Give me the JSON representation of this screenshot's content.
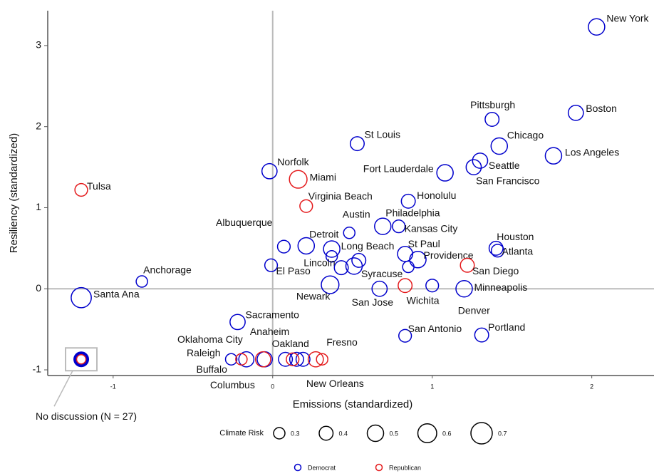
{
  "chart_data": {
    "type": "scatter",
    "x_label": "Emissions (standardized)",
    "y_label": "Resiliency (standardized)",
    "xlim": [
      -1.41,
      2.39
    ],
    "ylim": [
      -1.07,
      3.43
    ],
    "xticks": [
      -1,
      0,
      1,
      2
    ],
    "yticks": [
      -1,
      0,
      1,
      2,
      3
    ],
    "vline": 0,
    "hline": 0,
    "size_legend": {
      "title": "Climate Risk",
      "values": [
        0.3,
        0.4,
        0.5,
        0.6,
        0.7
      ]
    },
    "series": [
      {
        "name": "Democrat",
        "color": "#0000cc",
        "labels": [
          "New York",
          "Boston",
          "Pittsburgh",
          "Chicago",
          "Los Angeles",
          "Seattle",
          "San Francisco",
          "Fort Lauderdale",
          "St Louis",
          "Norfolk",
          "Honolulu",
          "Austin",
          "Philadelphia",
          "Kansas City",
          "Albuquerque",
          "Detroit",
          "Long Beach",
          "Houston",
          "Atlanta",
          "St Paul",
          "Providence",
          null,
          "Lincoln",
          null,
          "Syracuse",
          null,
          "El Paso",
          "Anchorage",
          "Santa Ana",
          "Newark",
          "San Jose",
          "Denver",
          "Minneapolis",
          "Sacramento",
          "San Antonio",
          "Portland",
          "Raleigh",
          "Oklahoma City",
          "Anaheim",
          "Oakland",
          null,
          "New Orleans"
        ],
        "x": [
          2.03,
          1.9,
          1.375,
          1.42,
          1.76,
          1.3,
          1.26,
          1.08,
          0.53,
          -0.02,
          0.85,
          0.48,
          0.69,
          0.79,
          0.07,
          0.21,
          0.37,
          1.4,
          1.41,
          0.83,
          0.91,
          0.85,
          0.37,
          0.43,
          0.51,
          0.54,
          -0.01,
          -0.82,
          -1.2,
          0.36,
          0.67,
          1.0,
          1.2,
          -0.22,
          0.83,
          1.31,
          -0.26,
          -0.165,
          -0.05,
          0.08,
          0.15,
          0.19
        ],
        "values": [
          3.23,
          2.17,
          2.09,
          1.76,
          1.64,
          1.58,
          1.5,
          1.43,
          1.79,
          1.45,
          1.08,
          0.69,
          0.77,
          0.77,
          0.52,
          0.53,
          0.49,
          0.5,
          0.47,
          0.43,
          0.36,
          0.27,
          0.4,
          0.26,
          0.28,
          0.35,
          0.29,
          0.09,
          -0.11,
          0.05,
          0,
          0.04,
          0,
          -0.41,
          -0.58,
          -0.57,
          -0.87,
          -0.87,
          -0.87,
          -0.87,
          -0.87,
          -0.87
        ],
        "sizes": [
          0.5,
          0.45,
          0.4,
          0.5,
          0.5,
          0.45,
          0.45,
          0.5,
          0.4,
          0.45,
          0.4,
          0.3,
          0.5,
          0.35,
          0.35,
          0.5,
          0.5,
          0.4,
          0.35,
          0.45,
          0.5,
          0.3,
          0.3,
          0.4,
          0.5,
          0.4,
          0.35,
          0.3,
          0.65,
          0.55,
          0.45,
          0.35,
          0.5,
          0.45,
          0.35,
          0.4,
          0.3,
          0.45,
          0.45,
          0.4,
          0.4,
          0.4
        ]
      },
      {
        "name": "Republican",
        "color": "#e41a1c",
        "labels": [
          "Tulsa",
          "Miami",
          "Virginia Beach",
          "San Diego",
          "Wichita",
          "Buffalo",
          "Columbus",
          null,
          "Fresno",
          null
        ],
        "x": [
          -1.2,
          0.16,
          0.21,
          1.22,
          0.83,
          -0.196,
          -0.06,
          0.125,
          0.27,
          0.31
        ],
        "values": [
          1.22,
          1.35,
          1.02,
          0.29,
          0.04,
          -0.87,
          -0.87,
          -0.87,
          -0.87,
          -0.87
        ],
        "sizes": [
          0.35,
          0.55,
          0.35,
          0.4,
          0.4,
          0.3,
          0.45,
          0.35,
          0.45,
          0.3
        ]
      }
    ],
    "annotation": {
      "text": "No discussion (N = 27)",
      "x": -1.2,
      "y": -0.87
    }
  }
}
